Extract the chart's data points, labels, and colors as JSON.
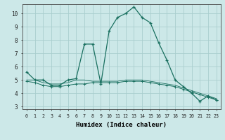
{
  "xlabel": "Humidex (Indice chaleur)",
  "background_color": "#cce8e8",
  "grid_color": "#aacece",
  "line_color": "#1a7060",
  "x_ticks": [
    0,
    1,
    2,
    3,
    4,
    5,
    6,
    7,
    8,
    9,
    10,
    11,
    12,
    13,
    14,
    15,
    16,
    17,
    18,
    19,
    20,
    21,
    22,
    23
  ],
  "y_ticks": [
    3,
    4,
    5,
    6,
    7,
    8,
    9,
    10
  ],
  "ylim": [
    2.8,
    10.7
  ],
  "xlim": [
    -0.5,
    23.5
  ],
  "series1": {
    "x": [
      0,
      1,
      2,
      3,
      4,
      5,
      6,
      7,
      8,
      9,
      10,
      11,
      12,
      13,
      14,
      15,
      16,
      17,
      18,
      19,
      20,
      21,
      22,
      23
    ],
    "y": [
      5.6,
      5.0,
      5.0,
      4.6,
      4.6,
      5.0,
      5.1,
      7.7,
      7.7,
      4.7,
      8.7,
      9.7,
      10.0,
      10.5,
      9.7,
      9.3,
      7.8,
      6.5,
      5.0,
      4.5,
      4.0,
      3.4,
      3.8,
      3.5
    ]
  },
  "series2": {
    "x": [
      0,
      1,
      2,
      3,
      4,
      5,
      6,
      7,
      8,
      9,
      10,
      11,
      12,
      13,
      14,
      15,
      16,
      17,
      18,
      19,
      20,
      21,
      22,
      23
    ],
    "y": [
      4.9,
      4.8,
      4.6,
      4.5,
      4.5,
      4.6,
      4.7,
      4.7,
      4.8,
      4.8,
      4.8,
      4.8,
      4.9,
      4.9,
      4.9,
      4.8,
      4.7,
      4.6,
      4.5,
      4.3,
      4.1,
      3.9,
      3.7,
      3.5
    ]
  },
  "series3": {
    "x": [
      0,
      1,
      2,
      3,
      4,
      5,
      6,
      7,
      8,
      9,
      10,
      11,
      12,
      13,
      14,
      15,
      16,
      17,
      18,
      19,
      20,
      21,
      22,
      23
    ],
    "y": [
      5.0,
      5.0,
      4.8,
      4.7,
      4.7,
      4.8,
      5.0,
      5.0,
      4.9,
      4.9,
      4.9,
      4.9,
      5.0,
      5.0,
      5.0,
      4.9,
      4.8,
      4.7,
      4.6,
      4.4,
      4.2,
      4.0,
      3.8,
      3.6
    ]
  }
}
